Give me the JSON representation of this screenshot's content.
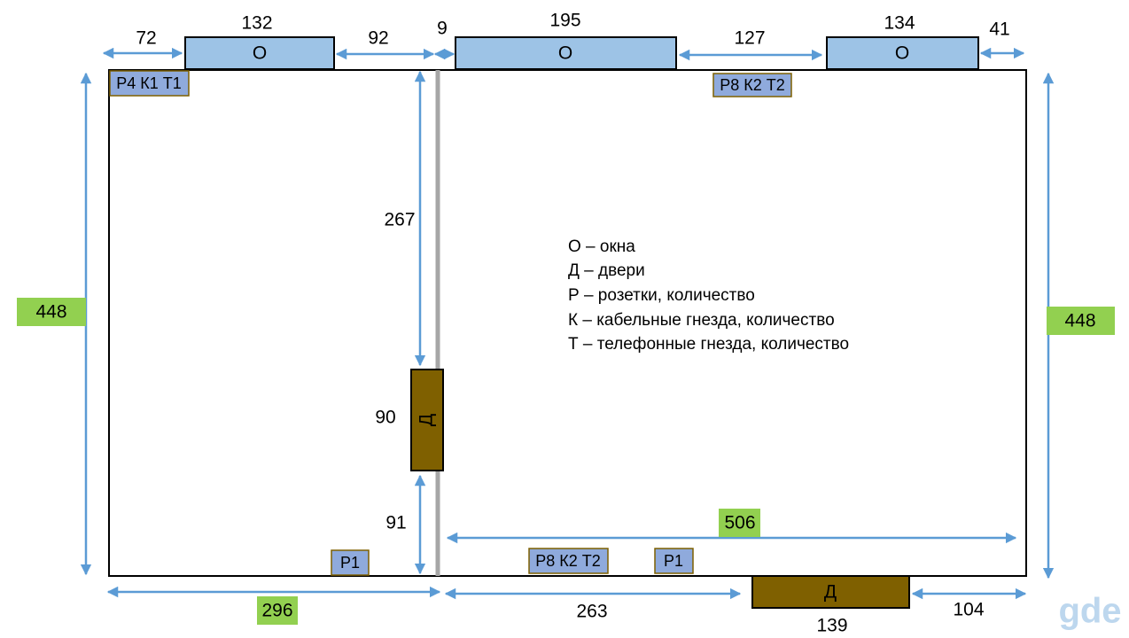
{
  "windows": [
    {
      "label": "О",
      "width": 132
    },
    {
      "label": "О",
      "width": 195
    },
    {
      "label": "О",
      "width": 134
    }
  ],
  "doors": [
    {
      "label": "Д",
      "width": 90
    },
    {
      "label": "Д",
      "width": 139
    }
  ],
  "sockets": [
    "Р4 К1 Т1",
    "Р8 К2 Т2",
    "Р1",
    "Р8 К2 Т2",
    "Р1"
  ],
  "dimensions": {
    "left_margin": 72,
    "gap_1": 92,
    "gap_2": 9,
    "gap_3": 127,
    "right_margin": 41,
    "above_door": 267,
    "below_door": 91,
    "left_height": 448,
    "right_height": 448,
    "left_width": 296,
    "right_width": 506,
    "bottom_left": 263,
    "bottom_right": 104
  },
  "legend": [
    "О – окна",
    "Д – двери",
    "Р – розетки, количество",
    "К – кабельные гнезда, количество",
    "Т – телефонные гнезда, количество"
  ],
  "watermark": "gde"
}
